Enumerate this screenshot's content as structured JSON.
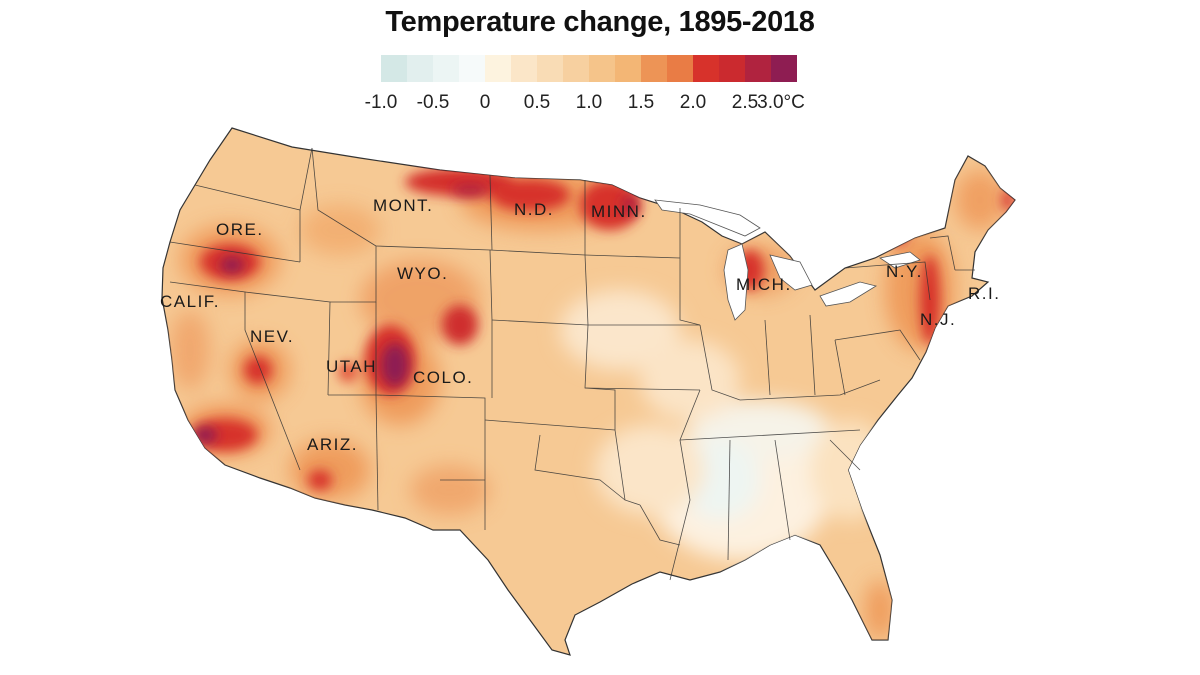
{
  "title": "Temperature change, 1895-2018",
  "legend": {
    "colors": [
      "#d4e8e6",
      "#e2efee",
      "#ecf5f4",
      "#f6fafa",
      "#fdf3df",
      "#fbe6c8",
      "#f9dcb5",
      "#f7d0a0",
      "#f5c48a",
      "#f3b675",
      "#ed9456",
      "#e97c45",
      "#d7322b",
      "#cb2a2f",
      "#b0233f",
      "#8e1d52"
    ],
    "ticks": [
      "-1.0",
      "-0.5",
      "0",
      "0.5",
      "1.0",
      "1.5",
      "2.0",
      "2.5",
      "3.0°C"
    ]
  },
  "map": {
    "base_color": "#f6c994",
    "state_labels": {
      "mont": "MONT.",
      "nd": "N.D.",
      "minn": "MINN.",
      "ore": "ORE.",
      "wyo": "WYO.",
      "calif": "CALIF.",
      "nev": "NEV.",
      "utah": "UTAH",
      "colo": "COLO.",
      "ariz": "ARIZ.",
      "mich": "MICH.",
      "ny": "N.Y.",
      "ri": "R.I.",
      "nj": "N.J."
    }
  }
}
